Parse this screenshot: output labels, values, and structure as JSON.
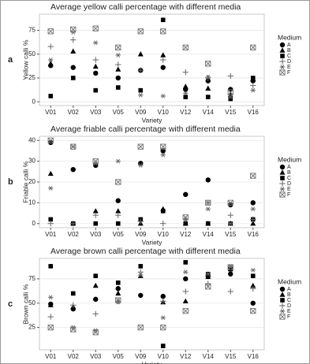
{
  "chart_data": [
    {
      "type": "scatter",
      "panel_label": "a",
      "title": "Average yellow calli percentage with different media",
      "x_label": "Variety",
      "y_label": "Yellow calli %",
      "legend_title": "Medium",
      "categories": [
        "V01",
        "V02",
        "V03",
        "V05",
        "V09",
        "V10",
        "V12",
        "V14",
        "V15",
        "V16"
      ],
      "ylim": [
        -4,
        92
      ],
      "yticks": [
        0,
        25,
        50,
        75
      ],
      "grid": true,
      "series": [
        {
          "name": "A",
          "color": "#000000",
          "marker": "circle",
          "values": [
            38,
            36,
            30,
            25,
            33,
            36,
            13,
            22,
            13,
            22
          ]
        },
        {
          "name": "B",
          "color": "#000000",
          "marker": "triangle",
          "values": [
            40,
            53,
            37,
            34,
            50,
            49,
            16,
            14,
            7,
            24
          ]
        },
        {
          "name": "C",
          "color": "#000000",
          "marker": "square",
          "values": [
            6,
            25,
            12,
            15,
            12,
            86,
            5,
            5,
            3,
            25
          ]
        },
        {
          "name": "D",
          "color": "#666666",
          "marker": "plus",
          "values": [
            58,
            65,
            44,
            39,
            33,
            44,
            31,
            25,
            27,
            17
          ]
        },
        {
          "name": "E",
          "color": "#666666",
          "marker": "asterisk",
          "values": [
            44,
            73,
            62,
            49,
            7,
            6,
            9,
            26,
            5,
            12
          ]
        },
        {
          "name": "F",
          "color": "#777777",
          "marker": "boxcross",
          "values": [
            74,
            76,
            77,
            57,
            74,
            74,
            57,
            40,
            10,
            57
          ]
        }
      ]
    },
    {
      "type": "scatter",
      "panel_label": "b",
      "title": "Average friable calli percentage with different media",
      "x_label": "Variety",
      "y_label": "Friable calli %",
      "legend_title": "Medium",
      "categories": [
        "V01",
        "V02",
        "V03",
        "V05",
        "V09",
        "V10",
        "V12",
        "V14",
        "V15",
        "V16"
      ],
      "ylim": [
        -2,
        42
      ],
      "yticks": [
        0,
        10,
        20,
        30,
        40
      ],
      "grid": true,
      "series": [
        {
          "name": "A",
          "color": "#000000",
          "marker": "circle",
          "values": [
            39,
            26,
            28,
            11,
            29,
            35,
            14,
            21,
            9,
            10
          ]
        },
        {
          "name": "B",
          "color": "#000000",
          "marker": "triangle",
          "values": [
            24,
            0,
            6,
            6,
            0,
            7,
            0,
            0,
            0,
            0
          ]
        },
        {
          "name": "C",
          "color": "#000000",
          "marker": "square",
          "values": [
            2,
            0,
            0,
            0,
            2,
            6,
            0,
            0,
            0,
            2
          ]
        },
        {
          "name": "D",
          "color": "#666666",
          "marker": "plus",
          "values": [
            0,
            0,
            4,
            4,
            1,
            0,
            2,
            10,
            4,
            2
          ]
        },
        {
          "name": "E",
          "color": "#666666",
          "marker": "asterisk",
          "values": [
            17,
            37,
            29,
            30,
            28,
            33,
            2,
            7,
            0,
            7
          ]
        },
        {
          "name": "F",
          "color": "#777777",
          "marker": "boxcross",
          "values": [
            40,
            37,
            30,
            20,
            37,
            37,
            3,
            10,
            10,
            23
          ]
        }
      ]
    },
    {
      "type": "scatter",
      "panel_label": "c",
      "title": "Average brown calli percentage with different media",
      "x_label": "Variety",
      "y_label": "Brown calli %",
      "legend_title": "Medium",
      "categories": [
        "V01",
        "V02",
        "V03",
        "V05",
        "V09",
        "V10",
        "V12",
        "V14",
        "V15",
        "V16"
      ],
      "ylim": [
        2,
        96
      ],
      "yticks": [
        25,
        50,
        75
      ],
      "grid": true,
      "series": [
        {
          "name": "A",
          "color": "#000000",
          "marker": "circle",
          "values": [
            49,
            44,
            54,
            65,
            58,
            57,
            75,
            78,
            80,
            50
          ]
        },
        {
          "name": "B",
          "color": "#000000",
          "marker": "triangle",
          "values": [
            48,
            46,
            68,
            60,
            78,
            51,
            52,
            77,
            85,
            68
          ]
        },
        {
          "name": "C",
          "color": "#000000",
          "marker": "square",
          "values": [
            88,
            60,
            78,
            71,
            88,
            6,
            92,
            80,
            85,
            78
          ]
        },
        {
          "name": "D",
          "color": "#666666",
          "marker": "plus",
          "values": [
            36,
            48,
            39,
            52,
            82,
            52,
            62,
            70,
            62,
            65
          ]
        },
        {
          "name": "E",
          "color": "#666666",
          "marker": "asterisk",
          "values": [
            56,
            25,
            22,
            51,
            79,
            35,
            82,
            80,
            88,
            84
          ]
        },
        {
          "name": "F",
          "color": "#777777",
          "marker": "boxcross",
          "values": [
            25,
            23,
            20,
            53,
            25,
            25,
            42,
            67,
            87,
            42
          ]
        }
      ]
    }
  ]
}
